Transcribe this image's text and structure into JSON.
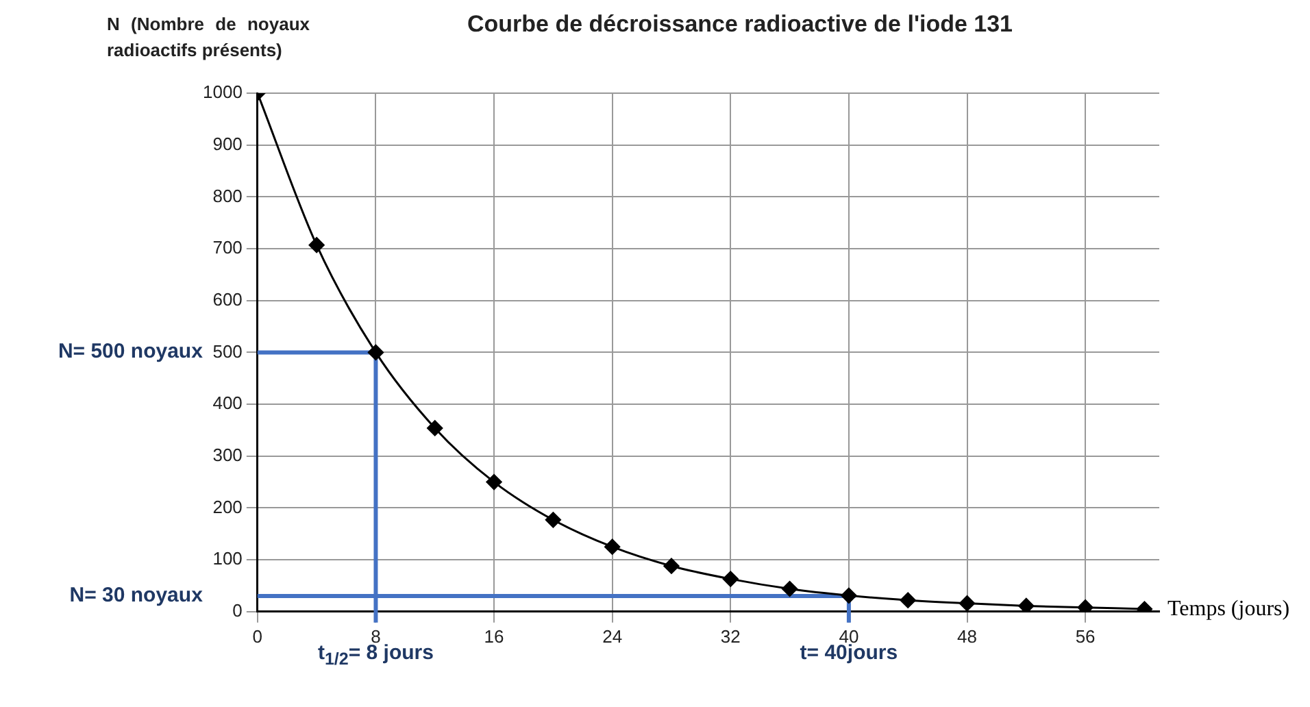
{
  "chart_data": {
    "type": "line",
    "title": "Courbe de décroissance radioactive de l'iode 131",
    "xlabel": "Temps (jours)",
    "ylabel": "N (Nombre de noyaux radioactifs présents)",
    "x": [
      0,
      4,
      8,
      12,
      16,
      20,
      24,
      28,
      32,
      36,
      40,
      44,
      48,
      52,
      56,
      60
    ],
    "series": [
      {
        "color": "#000000",
        "values": [
          1000,
          707,
          500,
          354,
          250,
          177,
          125,
          88,
          63,
          44,
          31,
          22,
          16,
          11,
          8,
          5
        ]
      }
    ],
    "xlim": [
      0,
      61
    ],
    "xticks": [
      0,
      8,
      16,
      24,
      32,
      40,
      48,
      56
    ],
    "ylim": [
      0,
      1000
    ],
    "yticks": [
      0,
      100,
      200,
      300,
      400,
      500,
      600,
      700,
      800,
      900,
      1000
    ],
    "grid": true,
    "legend": false,
    "marker": "diamond",
    "line_style": "solid",
    "ref_lines": [
      {
        "axis": "y",
        "value": 500,
        "label": "N= 500 noyaux",
        "color": "#4472c4"
      },
      {
        "axis": "x",
        "value": 8,
        "label": "t$_{1/2}$= 8 jours",
        "color": "#4472c4"
      },
      {
        "axis": "y",
        "value": 30,
        "label": "N= 30 noyaux",
        "color": "#4472c4"
      },
      {
        "axis": "x",
        "value": 40,
        "label": "t= 40jours",
        "color": "#4472c4"
      }
    ]
  }
}
